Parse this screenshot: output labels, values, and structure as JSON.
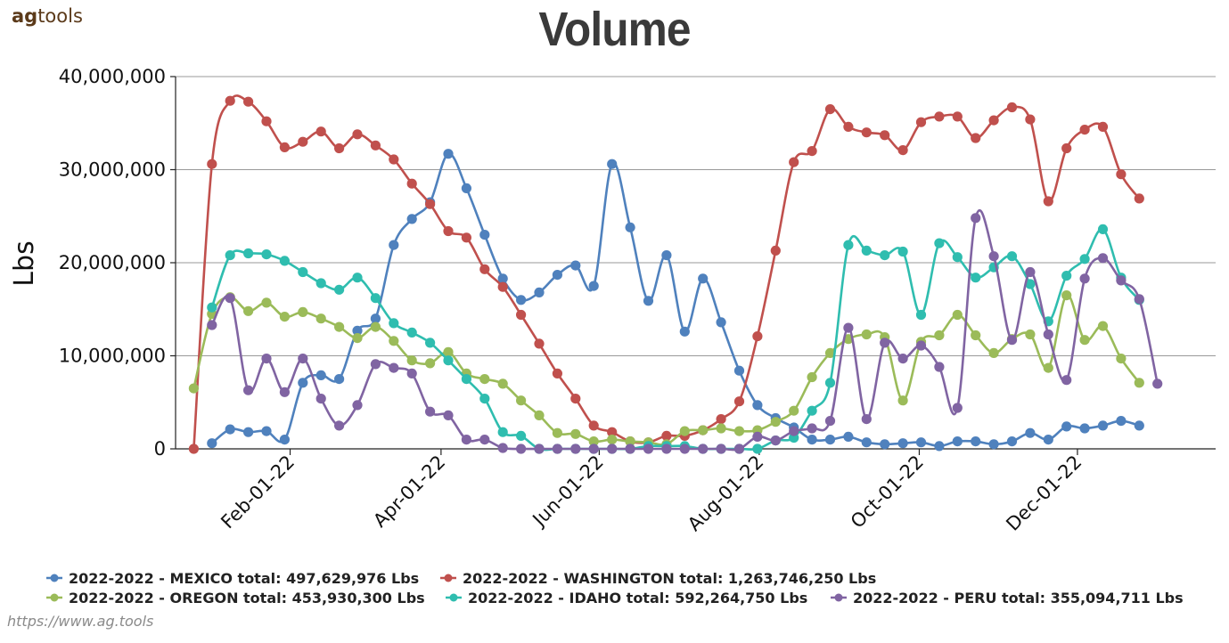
{
  "brand": {
    "part1": "ag",
    "part2": "tools"
  },
  "source_url": "https://www.ag.tools",
  "chart_data": {
    "type": "line",
    "title": "Volume",
    "ylabel": "Lbs",
    "xlabel": "",
    "ylim": [
      0,
      40000000
    ],
    "y_ticks": [
      {
        "value": 0,
        "label": "0"
      },
      {
        "value": 10000000,
        "label": "10,000,000"
      },
      {
        "value": 20000000,
        "label": "20,000,000"
      },
      {
        "value": 30000000,
        "label": "30,000,000"
      },
      {
        "value": 40000000,
        "label": "40,000,000"
      }
    ],
    "x_range": [
      -1,
      56.2
    ],
    "x_ticks": [
      {
        "week": 5.3,
        "label": "Feb-01-22"
      },
      {
        "week": 13.6,
        "label": "Apr-01-22"
      },
      {
        "week": 22.3,
        "label": "Jun-01-22"
      },
      {
        "week": 31.1,
        "label": "Aug-01-22"
      },
      {
        "week": 39.9,
        "label": "Oct-01-22"
      },
      {
        "week": 48.6,
        "label": "Dec-01-22"
      }
    ],
    "series": [
      {
        "name": "2022-2022 - MEXICO",
        "legend": "2022-2022 - MEXICO total: 497,629,976 Lbs",
        "color": "#4f81bd",
        "start_week": 1,
        "values": [
          600000,
          2100000,
          1800000,
          1900000,
          1000000,
          7100000,
          7900000,
          7500000,
          12700000,
          14000000,
          21900000,
          24700000,
          26500000,
          31700000,
          28000000,
          23000000,
          18300000,
          16000000,
          16800000,
          18700000,
          19700000,
          17500000,
          30600000,
          23800000,
          15900000,
          20800000,
          12600000,
          18300000,
          13600000,
          8400000,
          4700000,
          3300000,
          2300000,
          1000000,
          1000000,
          1300000,
          700000,
          500000,
          600000,
          700000,
          300000,
          800000,
          800000,
          500000,
          800000,
          1700000,
          1000000,
          2400000,
          2200000,
          2500000,
          3000000,
          2500000
        ]
      },
      {
        "name": "2022-2022 - WASHINGTON",
        "legend": "2022-2022 - WASHINGTON total: 1,263,746,250 Lbs",
        "color": "#c0504d",
        "start_week": 0,
        "values": [
          0,
          30600000,
          37400000,
          37300000,
          35200000,
          32400000,
          33000000,
          34100000,
          32300000,
          33800000,
          32600000,
          31100000,
          28500000,
          26300000,
          23400000,
          22700000,
          19300000,
          17400000,
          14400000,
          11300000,
          8100000,
          5400000,
          2500000,
          1800000,
          800000,
          700000,
          1400000,
          1400000,
          2000000,
          3200000,
          5100000,
          12100000,
          21300000,
          30800000,
          32000000,
          36500000,
          34600000,
          34000000,
          33700000,
          32100000,
          35100000,
          35700000,
          35700000,
          33400000,
          35300000,
          36700000,
          35400000,
          26600000,
          32300000,
          34300000,
          34600000,
          29500000,
          26900000
        ]
      },
      {
        "name": "2022-2022 - OREGON",
        "legend": "2022-2022 - OREGON total: 453,930,300 Lbs",
        "color": "#9bbb59",
        "start_week": 0,
        "values": [
          6500000,
          14500000,
          16300000,
          14800000,
          15700000,
          14200000,
          14700000,
          14000000,
          13100000,
          11900000,
          13100000,
          11600000,
          9500000,
          9200000,
          10400000,
          8100000,
          7500000,
          7000000,
          5200000,
          3600000,
          1700000,
          1600000,
          800000,
          1000000,
          800000,
          700000,
          500000,
          1900000,
          2000000,
          2200000,
          1900000,
          2000000,
          2900000,
          4100000,
          7700000,
          10300000,
          11800000,
          12300000,
          12000000,
          5200000,
          11500000,
          12200000,
          14400000,
          12200000,
          10300000,
          11800000,
          12300000,
          8700000,
          16500000,
          11700000,
          13200000,
          9700000,
          7100000
        ]
      },
      {
        "name": "2022-2022 - IDAHO",
        "legend": "2022-2022 - IDAHO total: 592,264,750 Lbs",
        "color": "#2fbdaf",
        "start_week": 1,
        "values": [
          15200000,
          20800000,
          21000000,
          20900000,
          20200000,
          19000000,
          17800000,
          17100000,
          18400000,
          16200000,
          13500000,
          12500000,
          11400000,
          9500000,
          7500000,
          5400000,
          1800000,
          1400000,
          0,
          0,
          0,
          0,
          0,
          0,
          300000,
          300000,
          300000,
          0,
          0,
          0,
          0,
          900000,
          1200000,
          4100000,
          7100000,
          21900000,
          21300000,
          20800000,
          21200000,
          14400000,
          22100000,
          20600000,
          18400000,
          19500000,
          20700000,
          17700000,
          13700000,
          18600000,
          20400000,
          23600000,
          18400000,
          16000000
        ]
      },
      {
        "name": "2022-2022 - PERU",
        "legend": "2022-2022 - PERU total: 355,094,711 Lbs",
        "color": "#8064a2",
        "start_week": 1,
        "values": [
          13300000,
          16200000,
          6300000,
          9700000,
          6100000,
          9700000,
          5400000,
          2500000,
          4700000,
          9100000,
          8700000,
          8100000,
          4000000,
          3600000,
          1000000,
          1000000,
          100000,
          0,
          0,
          0,
          0,
          0,
          0,
          0,
          0,
          0,
          0,
          0,
          0,
          0,
          1300000,
          900000,
          1900000,
          2200000,
          3000000,
          13000000,
          3200000,
          11400000,
          9700000,
          11100000,
          8800000,
          4400000,
          24800000,
          20700000,
          11700000,
          19000000,
          12300000,
          7400000,
          18300000,
          20500000,
          18100000,
          16100000,
          7000000
        ]
      }
    ]
  }
}
